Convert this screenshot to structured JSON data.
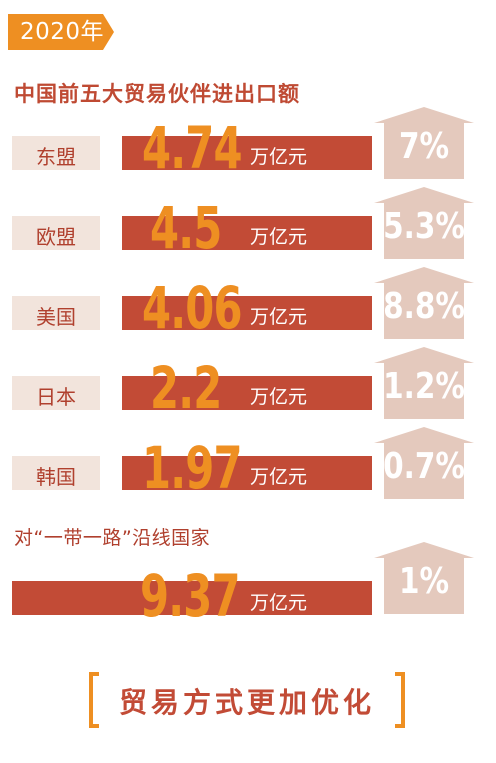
{
  "year_tag": "2020年",
  "title": "中国前五大贸易伙伴进出口额",
  "chart_data": {
    "type": "bar",
    "title": "中国前五大贸易伙伴进出口额",
    "unit": "万亿元",
    "categories": [
      "东盟",
      "欧盟",
      "美国",
      "日本",
      "韩国"
    ],
    "values": [
      4.74,
      4.5,
      4.06,
      2.2,
      1.97
    ],
    "value_labels": [
      "4.74",
      "4.5",
      "4.06",
      "2.2",
      "1.97"
    ],
    "growth_labels": [
      "7%",
      "5.3%",
      "8.8%",
      "1.2%",
      "0.7%"
    ],
    "growth": [
      7,
      5.3,
      8.8,
      1.2,
      0.7
    ],
    "belt_road": {
      "label": "对“一带一路”沿线国家",
      "value": 9.37,
      "value_label": "9.37",
      "unit": "万亿元",
      "growth": 1,
      "growth_label": "1%"
    }
  },
  "colors": {
    "accent_red": "#c24b36",
    "accent_orange": "#ee8f22",
    "arrow_pink": "#e4c9bd",
    "name_box": "#f2e4dc"
  },
  "bottom_title": "贸易方式更加优化"
}
